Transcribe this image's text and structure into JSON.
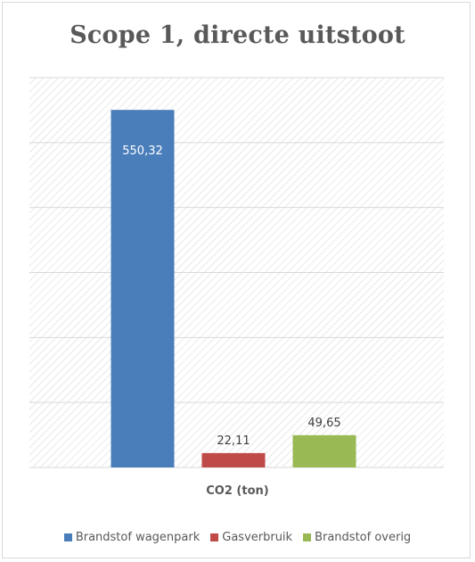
{
  "chart_data": {
    "type": "bar",
    "title": "Scope 1, directe uitstoot",
    "xlabel": "CO2 (ton)",
    "ylabel": "",
    "ylim": [
      0,
      600
    ],
    "grid": true,
    "legend_position": "bottom",
    "categories": [
      "CO2 (ton)"
    ],
    "series": [
      {
        "name": "Brandstof wagenpark",
        "values": [
          550.32
        ],
        "label": "550,32",
        "color": "#4a7ebb"
      },
      {
        "name": "Gasverbruik",
        "values": [
          22.11
        ],
        "label": "22,11",
        "color": "#be4b48"
      },
      {
        "name": "Brandstof overig",
        "values": [
          49.65
        ],
        "label": "49,65",
        "color": "#98b954"
      }
    ]
  }
}
